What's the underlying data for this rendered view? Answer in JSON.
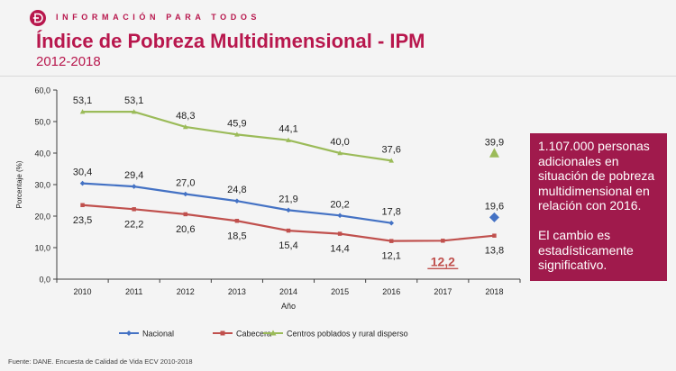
{
  "header": {
    "text": "INFORMACIÓN PARA TODOS",
    "title": "Índice de Pobreza Multidimensional - IPM",
    "subtitle": "2012-2018"
  },
  "callout": {
    "paragraph1": "1.107.000 personas adicionales en situación de pobreza multidimensional en relación con 2016.",
    "paragraph2": "El cambio es estadísticamente significativo."
  },
  "footer": {
    "source": "Fuente: DANE. Encuesta de Calidad de Vida ECV 2010-2018"
  },
  "colors": {
    "brand": "#b8174d",
    "callout_bg": "#a01a4c",
    "nacional": "#4472c4",
    "cabecera": "#c0504d",
    "rural": "#9bbb59"
  },
  "chart_data": {
    "type": "line",
    "categories": [
      "2010",
      "2011",
      "2012",
      "2013",
      "2014",
      "2015",
      "2016",
      "2017",
      "2018"
    ],
    "ylabel": "Porcentaje (%)",
    "xlabel": "Año",
    "ylim": [
      0,
      60
    ],
    "yticks": [
      "0,0",
      "10,0",
      "20,0",
      "30,0",
      "40,0",
      "50,0",
      "60,0"
    ],
    "grid": false,
    "legend_position": "bottom",
    "series": [
      {
        "name": "Nacional",
        "values": [
          30.4,
          29.4,
          27.0,
          24.8,
          21.9,
          20.2,
          17.8,
          null,
          19.6
        ],
        "labels": [
          "30,4",
          "29,4",
          "27,0",
          "24,8",
          "21,9",
          "20,2",
          "17,8",
          "",
          "19,6"
        ],
        "marker": "diamond",
        "color": "#4472c4"
      },
      {
        "name": "Cabecera",
        "values": [
          23.5,
          22.2,
          20.6,
          18.5,
          15.4,
          14.4,
          12.1,
          12.2,
          13.8
        ],
        "labels": [
          "23,5",
          "22,2",
          "20,6",
          "18,5",
          "15,4",
          "14,4",
          "12,1",
          "12,2",
          "13,8"
        ],
        "marker": "square",
        "color": "#c0504d"
      },
      {
        "name": "Centros poblados y rural disperso",
        "values": [
          53.1,
          53.1,
          48.3,
          45.9,
          44.1,
          40.0,
          37.6,
          null,
          39.9
        ],
        "labels": [
          "53,1",
          "53,1",
          "48,3",
          "45,9",
          "44,1",
          "40,0",
          "37,6",
          "",
          "39,9"
        ],
        "marker": "triangle",
        "color": "#9bbb59"
      }
    ]
  }
}
